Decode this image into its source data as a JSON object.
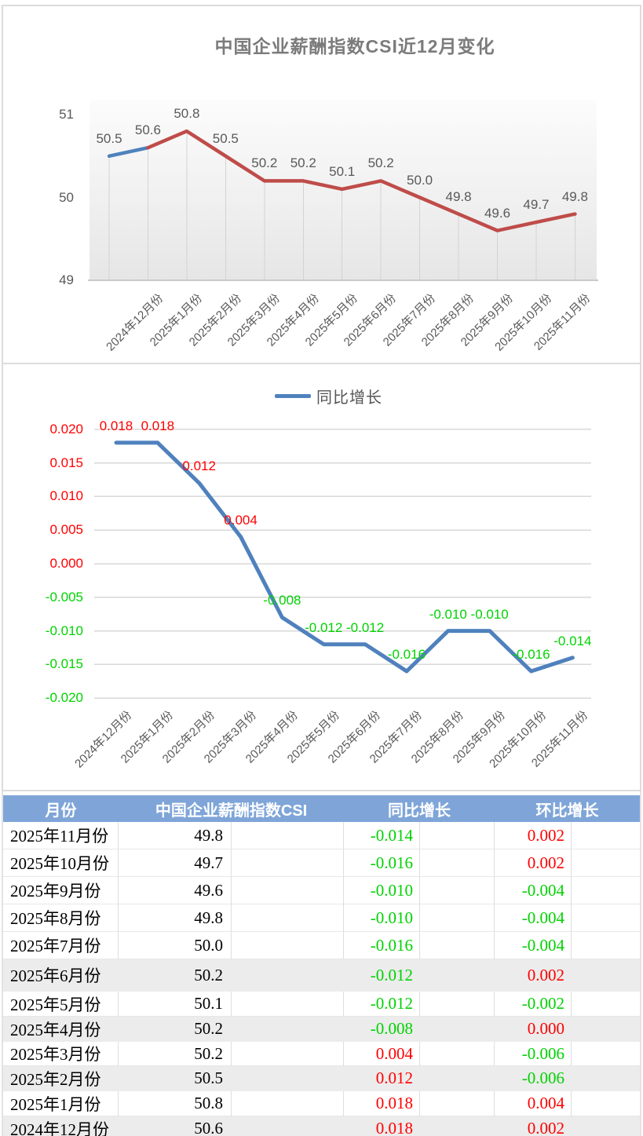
{
  "colors": {
    "line_blue": "#4f81bd",
    "line_red": "#bf4c49",
    "positive_red": "#ff0000",
    "negative_green": "#00d300",
    "axis_text_gray": "#595959",
    "table_header_bg": "#7fa5d8",
    "table_stripe_gray": "#ececec"
  },
  "chart_data": [
    {
      "type": "line",
      "title": "中国企业薪酬指数CSI近12月变化",
      "series_name": "中国企业薪酬指数CSI",
      "categories": [
        "",
        "2024年12月份",
        "2025年1月份",
        "2025年2月份",
        "2025年3月份",
        "2025年4月份",
        "2025年5月份",
        "2025年6月份",
        "2025年7月份",
        "2025年8月份",
        "2025年9月份",
        "2025年10月份",
        "2025年11月份"
      ],
      "values": [
        50.5,
        50.6,
        50.8,
        50.5,
        50.2,
        50.2,
        50.1,
        50.2,
        50.0,
        49.8,
        49.6,
        49.7,
        49.8
      ],
      "yticks": [
        51,
        50,
        49
      ],
      "ylim": [
        49,
        51
      ],
      "grid": "vertical-drop-lines",
      "legend_position": "none",
      "first_segment_color": "#4f81bd",
      "line_color": "#bf4c49",
      "label_position": "above"
    },
    {
      "type": "line",
      "legend": "同比增长",
      "legend_position": "top-center",
      "categories": [
        "2024年12月份",
        "2025年1月份",
        "2025年2月份",
        "2025年3月份",
        "2025年4月份",
        "2025年5月份",
        "2025年6月份",
        "2025年7月份",
        "2025年8月份",
        "2025年9月份",
        "2025年10月份",
        "2025年11月份"
      ],
      "values": [
        0.018,
        0.018,
        0.012,
        0.004,
        -0.008,
        -0.012,
        -0.012,
        -0.016,
        -0.01,
        -0.01,
        -0.016,
        -0.014
      ],
      "ylim": [
        -0.02,
        0.02
      ],
      "ytick_step": 0.005,
      "grid": "horizontal",
      "line_color": "#4f81bd",
      "label_color_rule": "positive=red, negative=green"
    }
  ],
  "table": {
    "headers": [
      "月份",
      "中国企业薪酬指数CSI",
      "同比增长",
      "环比增长"
    ],
    "rows": [
      {
        "month": "2025年11月份",
        "csi": "49.8",
        "yoy": "-0.014",
        "mom": "0.002"
      },
      {
        "month": "2025年10月份",
        "csi": "49.7",
        "yoy": "-0.016",
        "mom": "0.002"
      },
      {
        "month": "2025年9月份",
        "csi": "49.6",
        "yoy": "-0.010",
        "mom": "-0.004"
      },
      {
        "month": "2025年8月份",
        "csi": "49.8",
        "yoy": "-0.010",
        "mom": "-0.004"
      },
      {
        "month": "2025年7月份",
        "csi": "50.0",
        "yoy": "-0.016",
        "mom": "-0.004"
      },
      {
        "month": "2025年6月份",
        "csi": "50.2",
        "yoy": "-0.012",
        "mom": "0.002"
      },
      {
        "month": "2025年5月份",
        "csi": "50.1",
        "yoy": "-0.012",
        "mom": "-0.002"
      },
      {
        "month": "2025年4月份",
        "csi": "50.2",
        "yoy": "-0.008",
        "mom": "0.000"
      },
      {
        "month": "2025年3月份",
        "csi": "50.2",
        "yoy": "0.004",
        "mom": "-0.006"
      },
      {
        "month": "2025年2月份",
        "csi": "50.5",
        "yoy": "0.012",
        "mom": "-0.006"
      },
      {
        "month": "2025年1月份",
        "csi": "50.8",
        "yoy": "0.018",
        "mom": "0.004"
      },
      {
        "month": "2024年12月份",
        "csi": "50.6",
        "yoy": "0.018",
        "mom": "0.002"
      }
    ]
  }
}
